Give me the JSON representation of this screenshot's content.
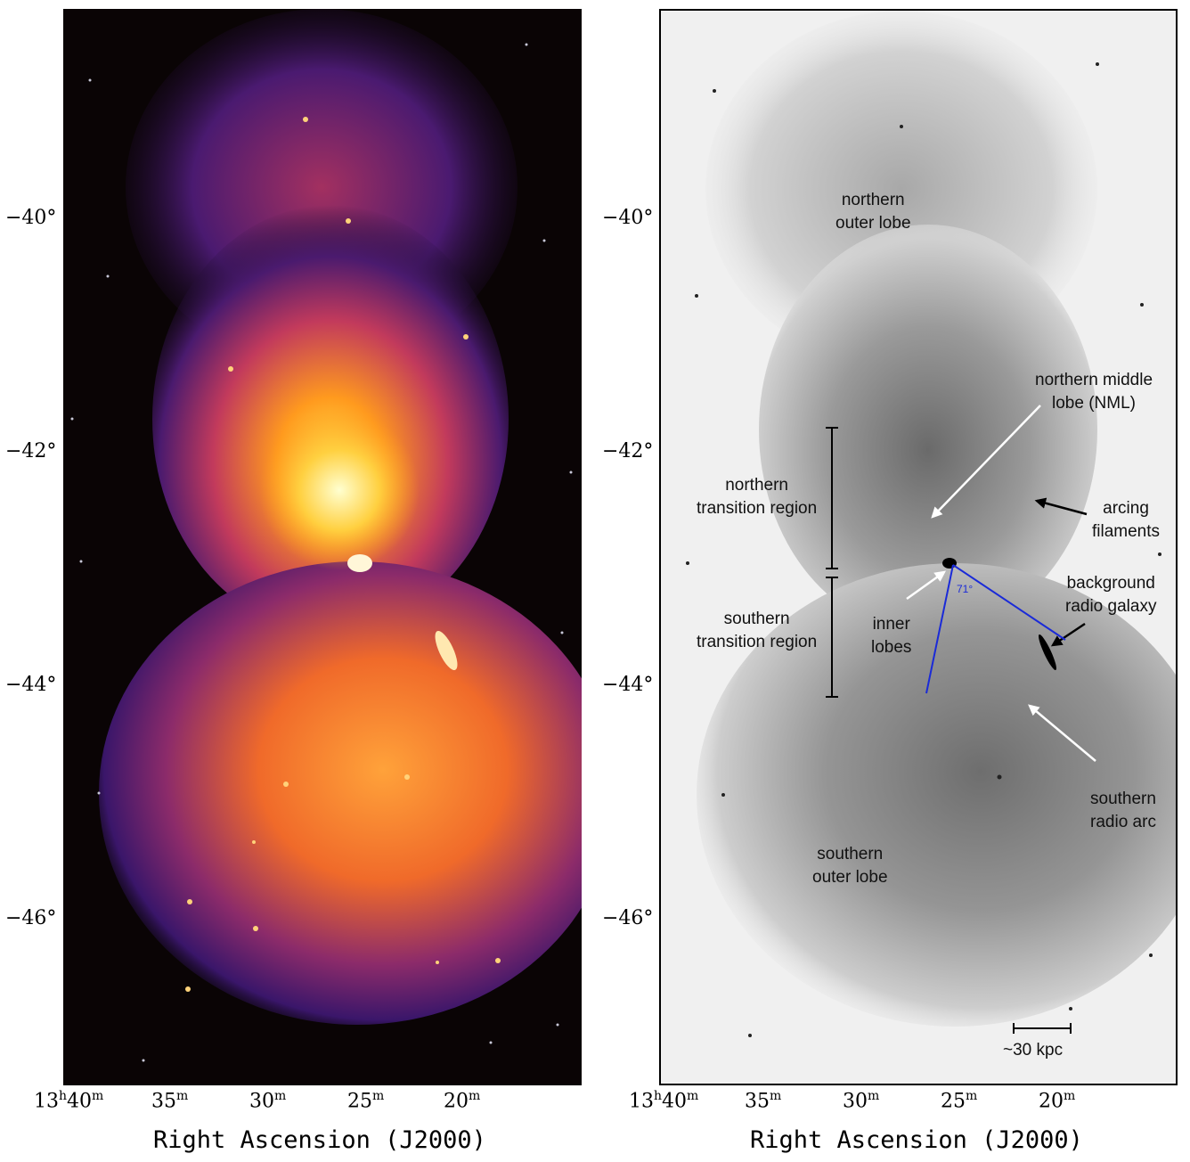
{
  "dec_ticks": [
    "−40°",
    "−42°",
    "−44°",
    "−46°"
  ],
  "ra_ticks": [
    {
      "main": "13",
      "sup1": "h",
      "main2": "40",
      "sup2": "m"
    },
    {
      "main": "35",
      "sup": "m"
    },
    {
      "main": "30",
      "sup": "m"
    },
    {
      "main": "25",
      "sup": "m"
    },
    {
      "main": "20",
      "sup": "m"
    }
  ],
  "xlabel": "Right Ascension (J2000)",
  "annotations": {
    "northern_outer_lobe": [
      "northern",
      "outer lobe"
    ],
    "northern_middle_lobe": [
      "northern middle",
      "lobe (NML)"
    ],
    "northern_transition": [
      "northern",
      "transition region"
    ],
    "arcing_filaments": [
      "arcing",
      "filaments"
    ],
    "southern_transition": [
      "southern",
      "transition region"
    ],
    "inner_lobes": [
      "inner",
      "lobes"
    ],
    "background_radio_galaxy": [
      "background",
      "radio galaxy"
    ],
    "angle": "71°",
    "southern_radio_arc": [
      "southern",
      "radio arc"
    ],
    "southern_outer_lobe": [
      "southern",
      "outer lobe"
    ],
    "scale_bar": "~30 kpc"
  },
  "colors": {
    "left_background": "#0a0405",
    "right_background": "#f0f0f0",
    "angle_lines": "#1a2ad8"
  }
}
